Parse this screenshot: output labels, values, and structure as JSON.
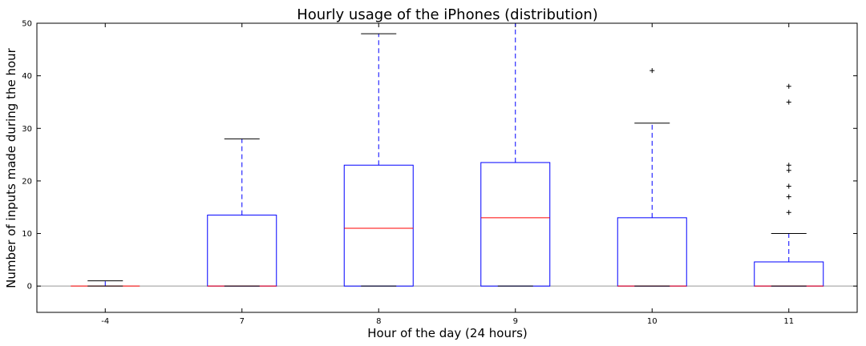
{
  "chart_data": {
    "type": "box",
    "title": "Hourly usage of the iPhones (distribution)",
    "xlabel": "Hour of the day (24 hours)",
    "ylabel": "Number of inputs made during the hour",
    "ylim": [
      -5,
      50
    ],
    "yticks": [
      0,
      10,
      20,
      30,
      40,
      50
    ],
    "grid": false,
    "categories": [
      "-4",
      "7",
      "8",
      "9",
      "10",
      "11"
    ],
    "boxes": [
      {
        "category": "-4",
        "whisker_low": 0,
        "q1": 0,
        "median": 0,
        "q3": 0,
        "whisker_high": 1,
        "outliers": []
      },
      {
        "category": "7",
        "whisker_low": 0,
        "q1": 0,
        "median": 0,
        "q3": 13.5,
        "whisker_high": 28,
        "outliers": []
      },
      {
        "category": "8",
        "whisker_low": 0,
        "q1": 0,
        "median": 11,
        "q3": 23,
        "whisker_high": 48,
        "outliers": []
      },
      {
        "category": "9",
        "whisker_low": 0,
        "q1": 0,
        "median": 13,
        "q3": 23.5,
        "whisker_high": 50,
        "outliers": []
      },
      {
        "category": "10",
        "whisker_low": 0,
        "q1": 0,
        "median": 0,
        "q3": 13,
        "whisker_high": 31,
        "outliers": [
          41
        ]
      },
      {
        "category": "11",
        "whisker_low": 0,
        "q1": 0,
        "median": 0,
        "q3": 4.6,
        "whisker_high": 10,
        "outliers": [
          14,
          17,
          19,
          22,
          23,
          35,
          38
        ]
      }
    ],
    "colors": {
      "box": "#0000ff",
      "median": "#ff0000",
      "whisker": "#0000ff",
      "cap": "#000000",
      "flier": "#000000",
      "zero_line": "#999999"
    }
  }
}
